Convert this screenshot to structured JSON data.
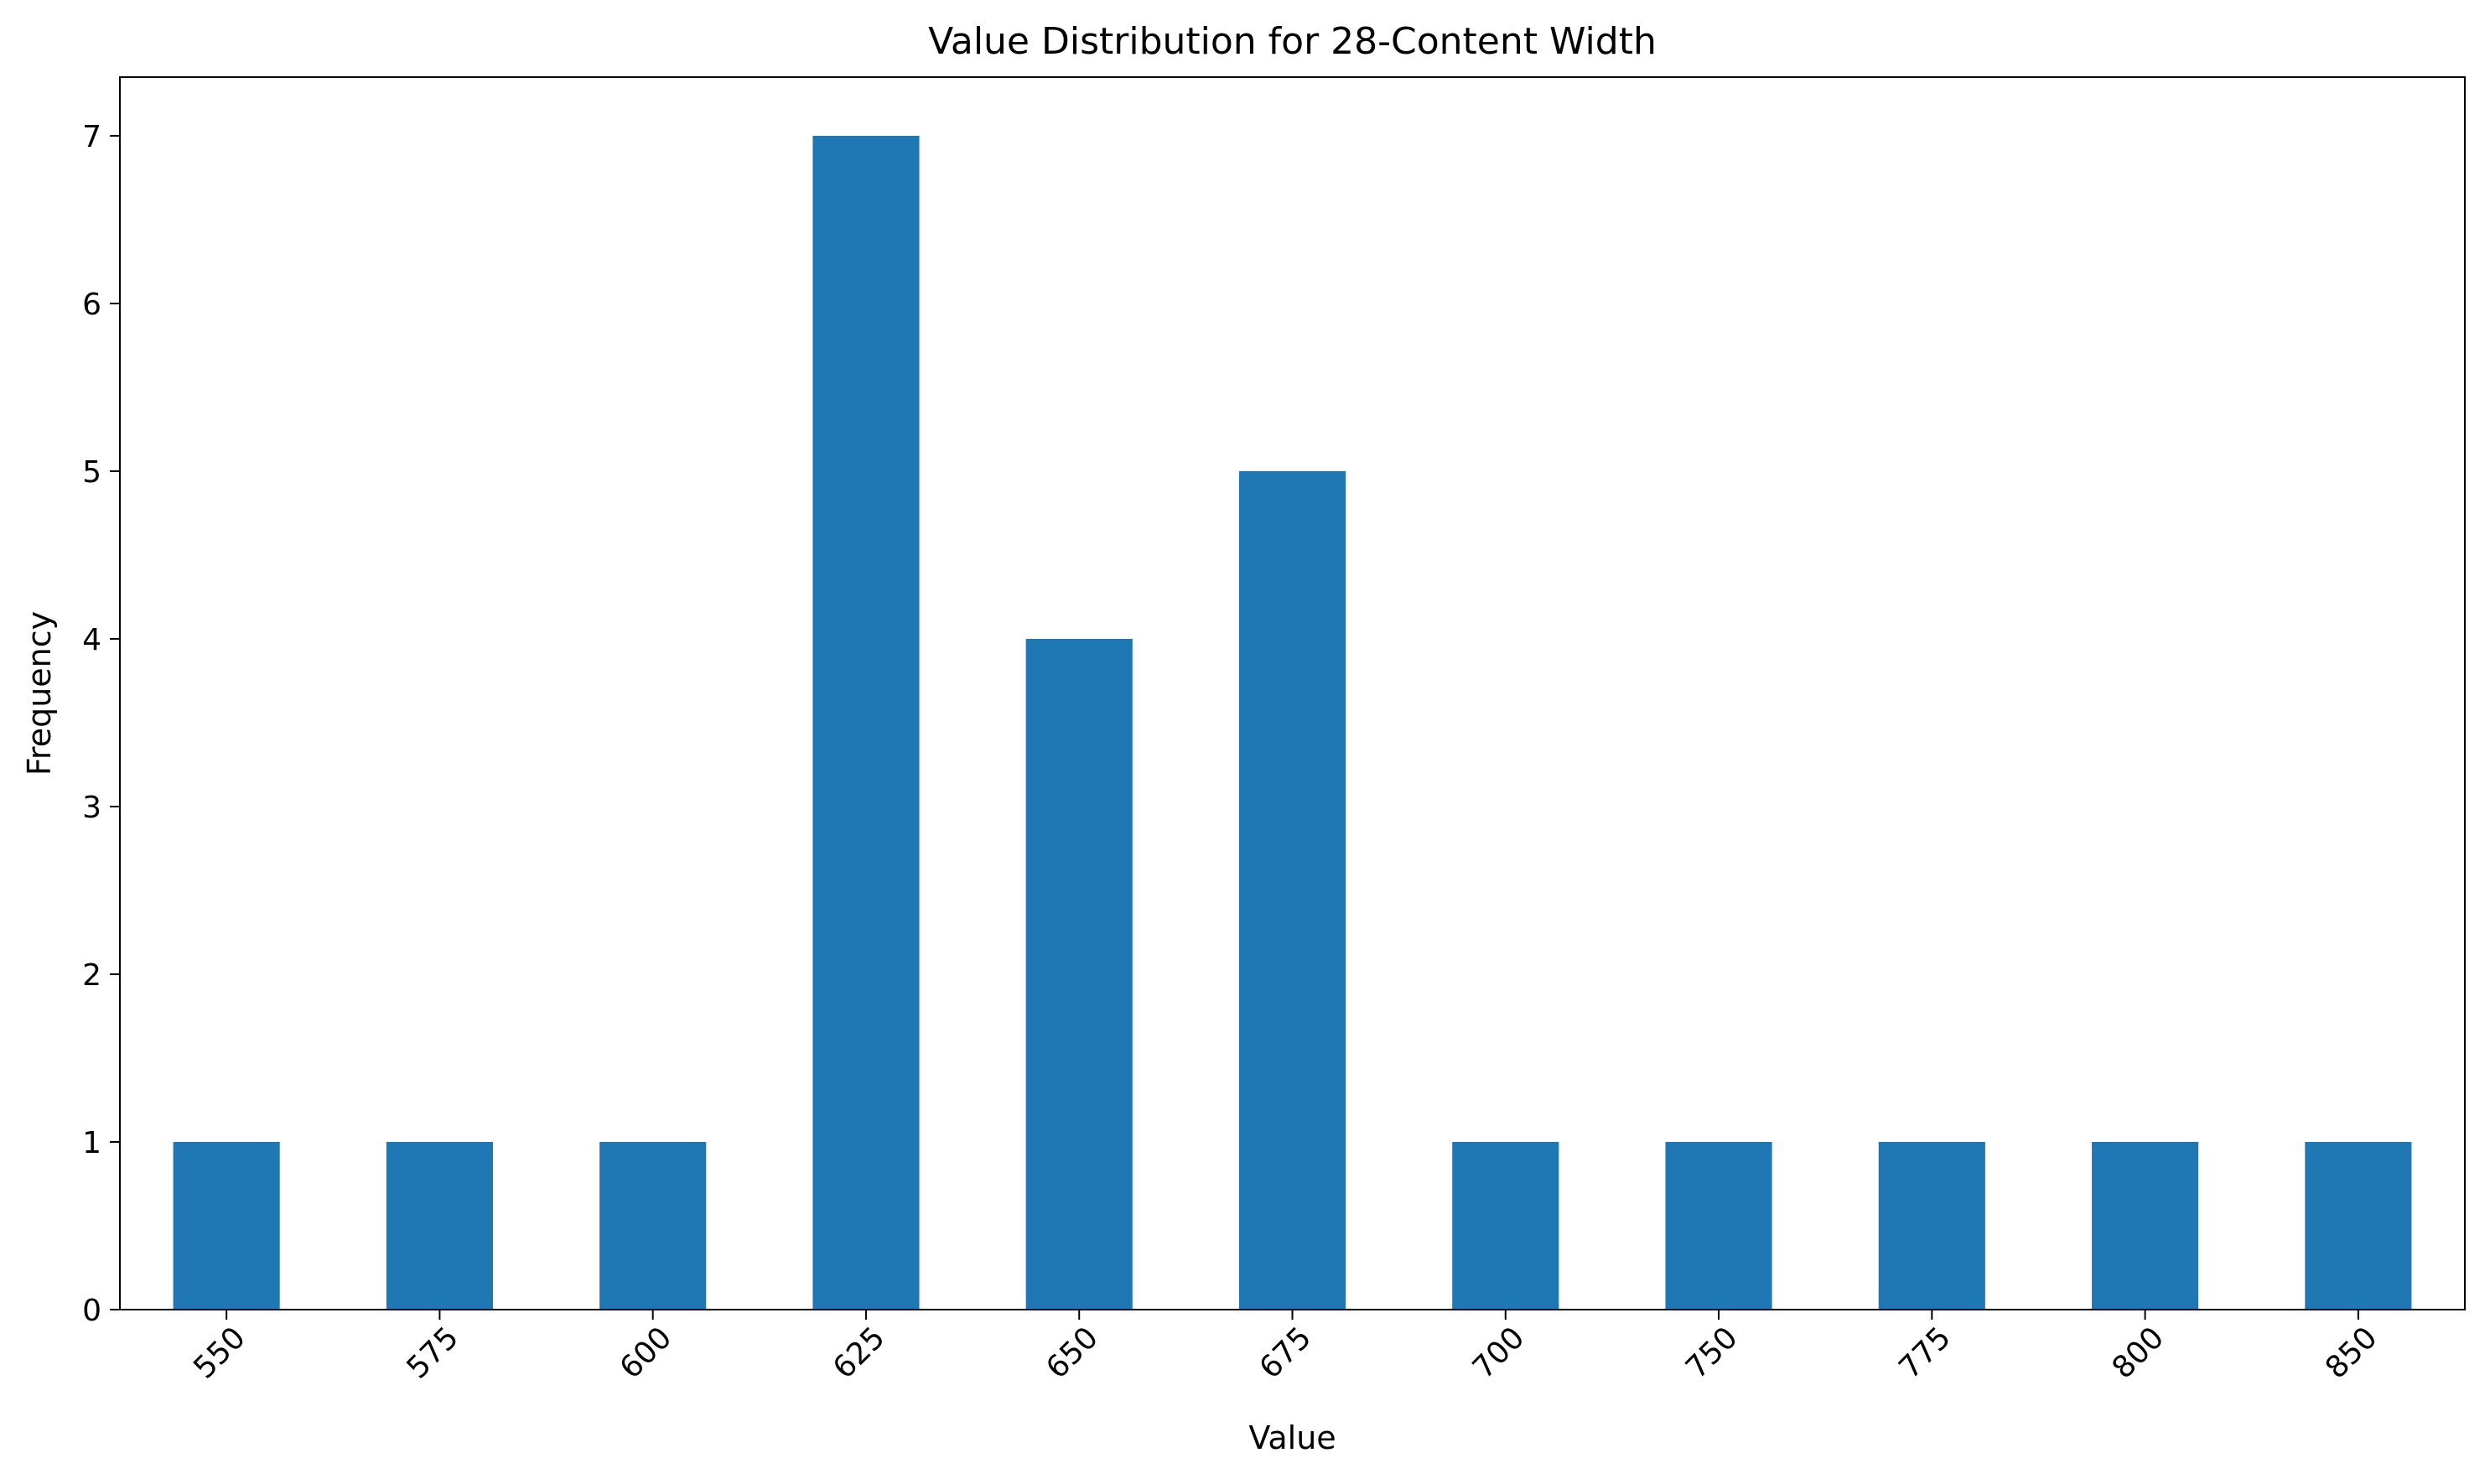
{
  "chart_data": {
    "type": "bar",
    "title": "Value Distribution for 28-Content Width",
    "xlabel": "Value",
    "ylabel": "Frequency",
    "categories": [
      "550",
      "575",
      "600",
      "625",
      "650",
      "675",
      "700",
      "750",
      "775",
      "800",
      "850"
    ],
    "values": [
      1,
      1,
      1,
      7,
      4,
      5,
      1,
      1,
      1,
      1,
      1
    ],
    "ylim": [
      0,
      7.35
    ],
    "yticks": [
      "0",
      "1",
      "2",
      "3",
      "4",
      "5",
      "6",
      "7"
    ],
    "grid": false,
    "legend": "none",
    "bar_color": "#1f77b4"
  }
}
